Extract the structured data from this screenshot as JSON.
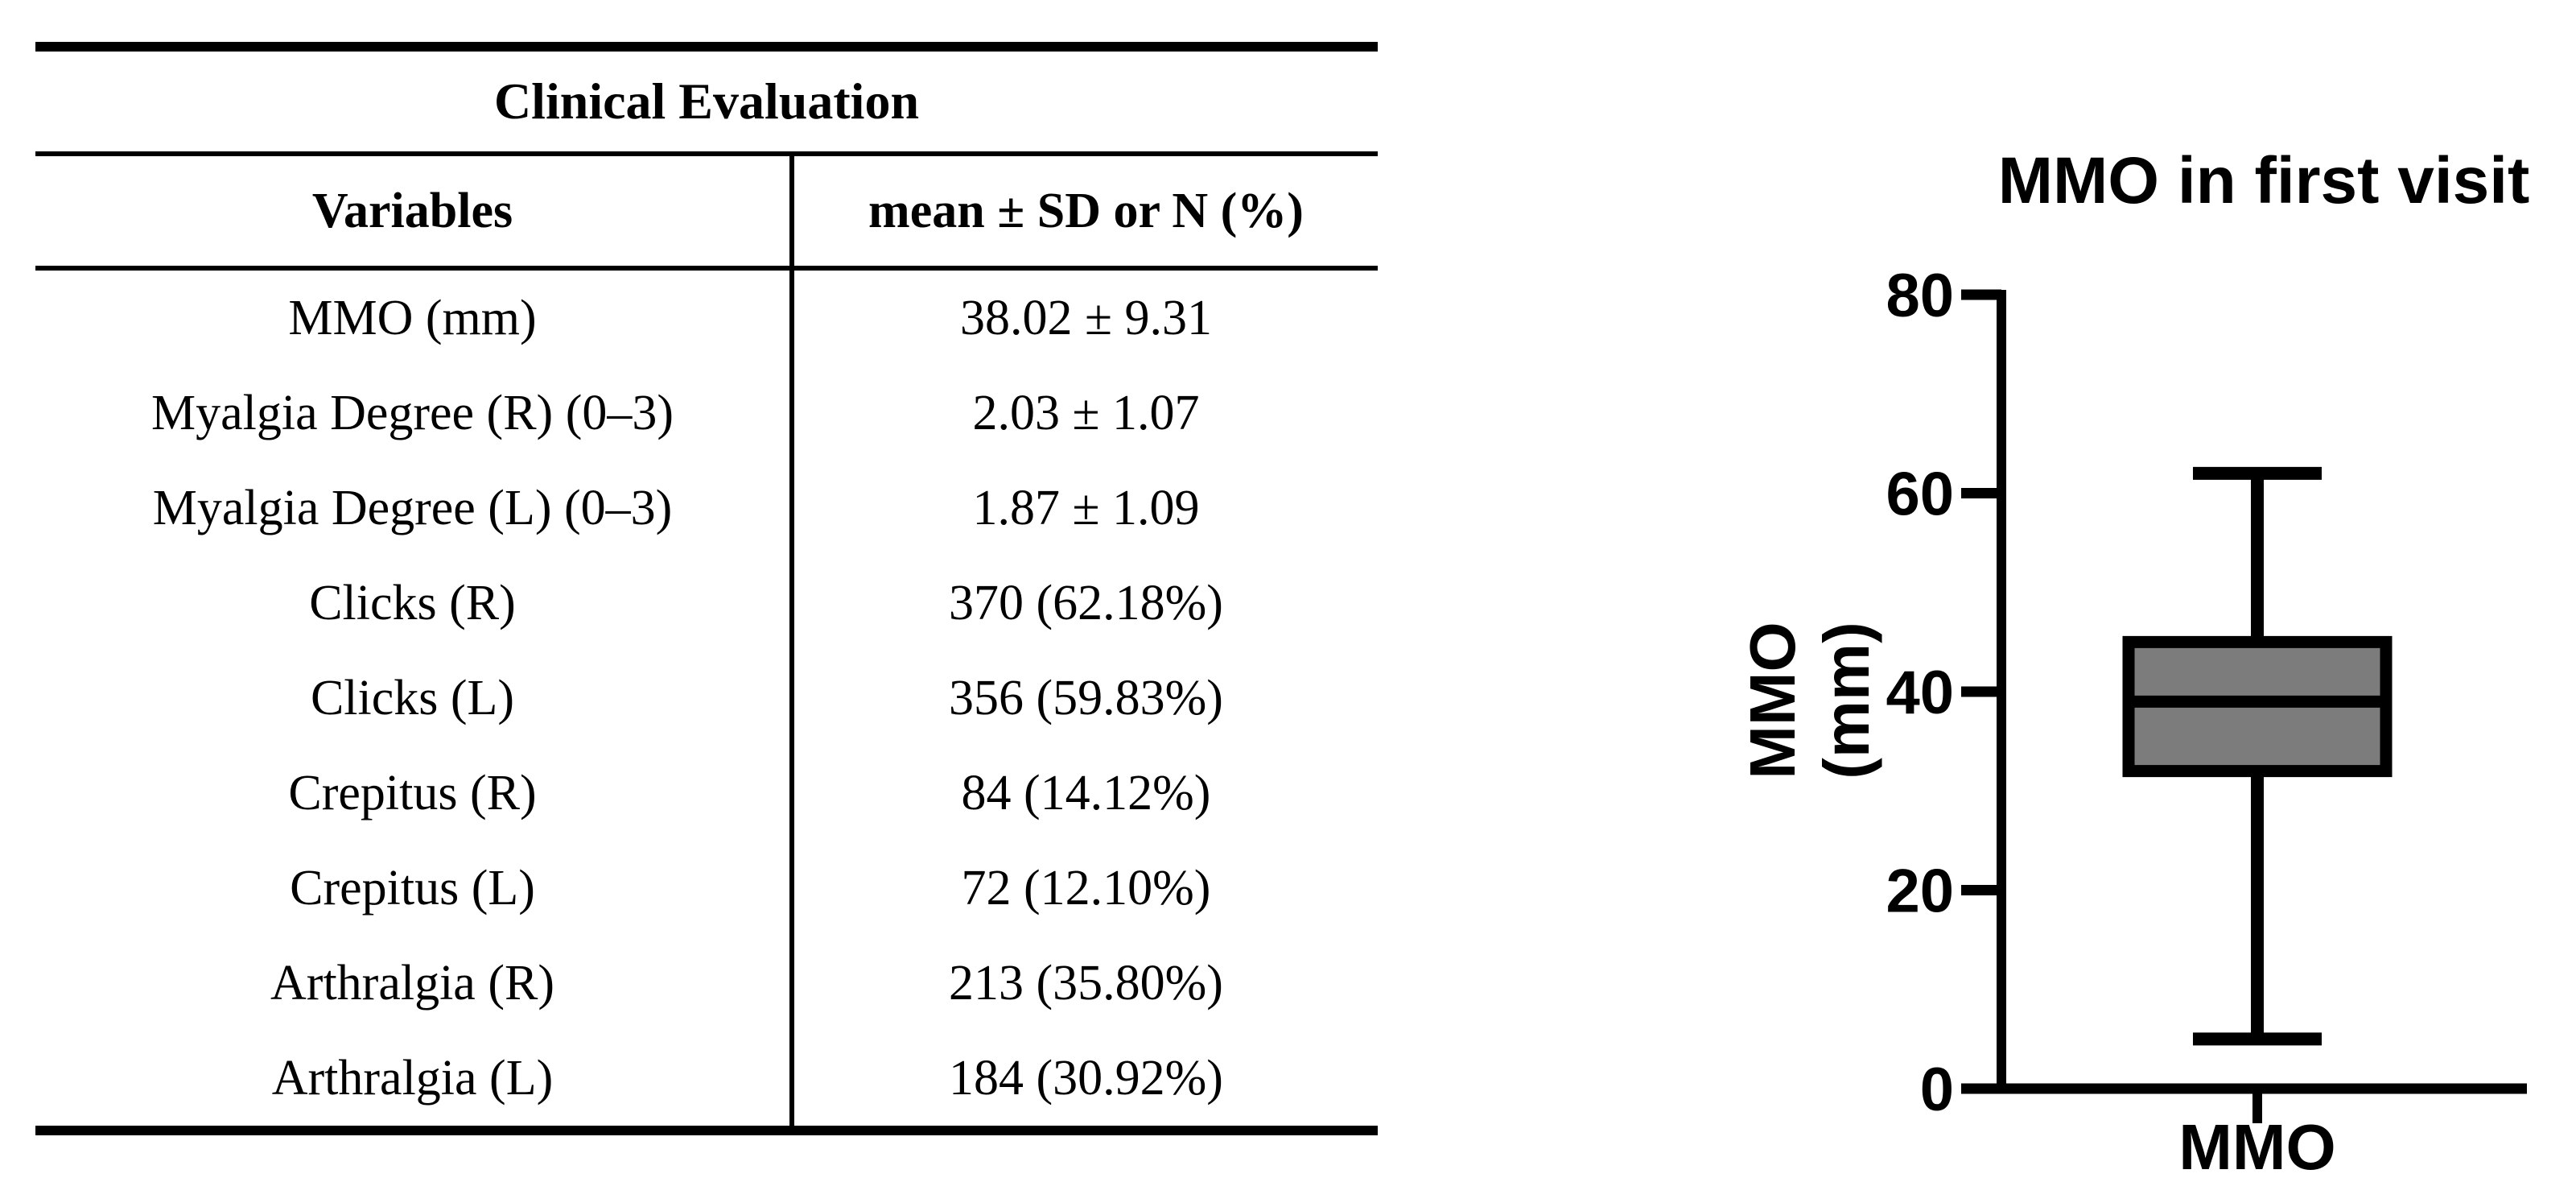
{
  "table": {
    "title": "Clinical Evaluation",
    "columns": [
      "Variables",
      "mean ± SD or N (%)"
    ],
    "rows": [
      [
        "MMO (mm)",
        "38.02 ± 9.31"
      ],
      [
        "Myalgia Degree (R) (0–3)",
        "2.03 ± 1.07"
      ],
      [
        "Myalgia Degree (L) (0–3)",
        "1.87 ± 1.09"
      ],
      [
        "Clicks (R)",
        "370 (62.18%)"
      ],
      [
        "Clicks (L)",
        "356 (59.83%)"
      ],
      [
        "Crepitus (R)",
        "84 (14.12%)"
      ],
      [
        "Crepitus (L)",
        "72 (12.10%)"
      ],
      [
        "Arthralgia (R)",
        "213 (35.80%)"
      ],
      [
        "Arthralgia (L)",
        "184 (30.92%)"
      ]
    ]
  },
  "chart_data": {
    "type": "box",
    "title": "MMO in first visit",
    "xlabel": "MMO",
    "ylabel_lines": [
      "MMO",
      "(mm)"
    ],
    "categories": [
      "MMO"
    ],
    "ylim": [
      0,
      80
    ],
    "yticks": [
      0,
      20,
      40,
      60,
      80
    ],
    "series": [
      {
        "name": "MMO",
        "min": 5,
        "q1": 32,
        "median": 39,
        "q3": 45,
        "max": 62
      }
    ],
    "box_fill": "#7c7c7c",
    "line_color": "#000000",
    "grid": false,
    "legend": "none"
  }
}
